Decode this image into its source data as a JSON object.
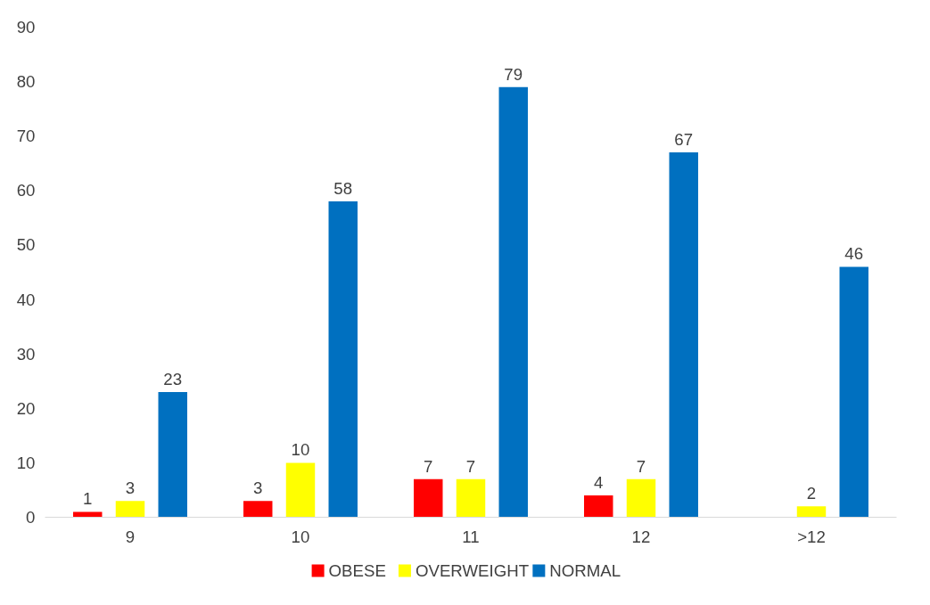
{
  "chart_data": {
    "type": "bar",
    "categories": [
      "9",
      "10",
      "11",
      "12",
      ">12"
    ],
    "series": [
      {
        "name": "OBESE",
        "color": "#ff0000",
        "values": [
          1,
          3,
          7,
          4,
          null
        ]
      },
      {
        "name": "OVERWEIGHT",
        "color": "#ffff00",
        "values": [
          3,
          10,
          7,
          7,
          2
        ]
      },
      {
        "name": "NORMAL",
        "color": "#0070c0",
        "values": [
          23,
          58,
          79,
          67,
          46
        ]
      }
    ],
    "ylim": [
      0,
      90
    ],
    "yticks": [
      0,
      10,
      20,
      30,
      40,
      50,
      60,
      70,
      80,
      90
    ],
    "grid": false,
    "legend": "bottom",
    "data_labels": true
  }
}
